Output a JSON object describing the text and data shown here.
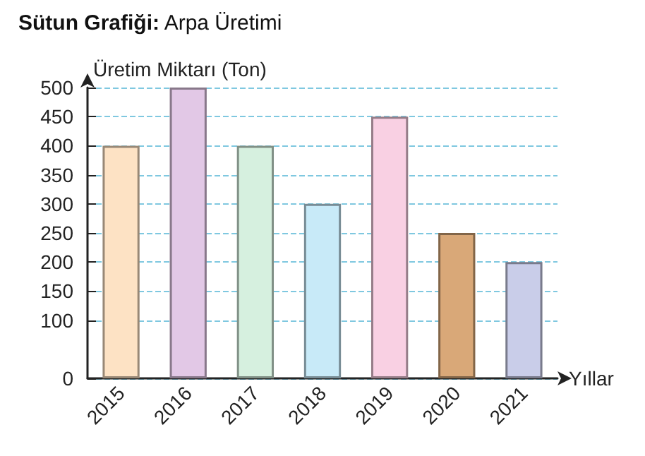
{
  "chart_data": {
    "type": "bar",
    "title": "Sütun Grafiği: Arpa Üretimi",
    "ylabel": "Üretim Miktarı (Ton)",
    "xlabel": "Yıllar",
    "categories": [
      "2015",
      "2016",
      "2017",
      "2018",
      "2019",
      "2020",
      "2021"
    ],
    "values": [
      400,
      500,
      400,
      300,
      450,
      250,
      200
    ],
    "colors": [
      "#fde2c4",
      "#e2c8e6",
      "#d6f0df",
      "#c8eaf8",
      "#f9d0e3",
      "#d9a878",
      "#c9cde9"
    ],
    "ylim": [
      0,
      500
    ],
    "yticks": [
      0,
      100,
      150,
      200,
      250,
      300,
      350,
      400,
      450,
      500
    ],
    "grid": "y"
  }
}
